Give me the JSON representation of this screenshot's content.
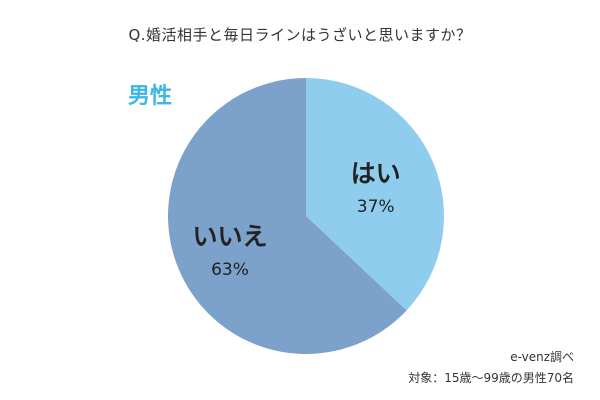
{
  "chart_data": {
    "type": "pie",
    "title": "Q.婚活相手と毎日ラインはうざいと思いますか？",
    "group_label": "男性",
    "categories": [
      "はい",
      "いいえ"
    ],
    "values": [
      37,
      63
    ],
    "value_labels": [
      "37%",
      "63%"
    ],
    "colors": [
      "#8fcdee",
      "#7ca1cb"
    ],
    "group_label_color": "#3bb6e6",
    "start_angle_deg": 0,
    "direction": "clockwise",
    "source": "e-venz調べ",
    "note": "対象：15歳〜99歳の男性70名"
  }
}
